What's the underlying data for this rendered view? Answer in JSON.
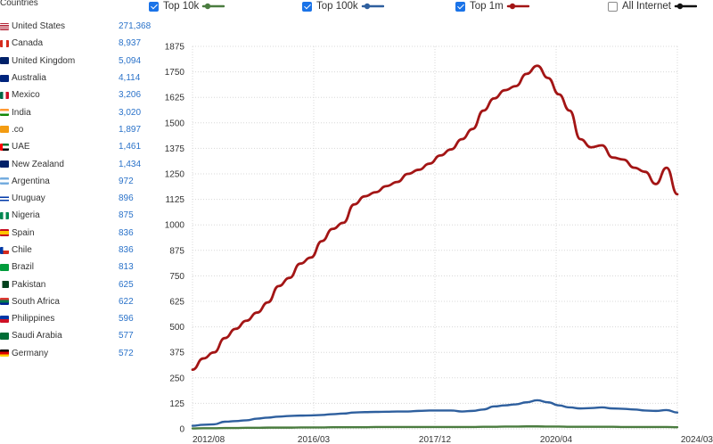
{
  "sidebar": {
    "header": "Countries",
    "countries": [
      {
        "name": "United States",
        "count": "271,368",
        "flag": "us"
      },
      {
        "name": "Canada",
        "count": "8,937",
        "flag": "ca"
      },
      {
        "name": "United Kingdom",
        "count": "5,094",
        "flag": "gb"
      },
      {
        "name": "Australia",
        "count": "4,114",
        "flag": "au"
      },
      {
        "name": "Mexico",
        "count": "3,206",
        "flag": "mx"
      },
      {
        "name": "India",
        "count": "3,020",
        "flag": "in"
      },
      {
        "name": ".co",
        "count": "1,897",
        "flag": "co"
      },
      {
        "name": "UAE",
        "count": "1,461",
        "flag": "ae"
      },
      {
        "name": "New Zealand",
        "count": "1,434",
        "flag": "nz"
      },
      {
        "name": "Argentina",
        "count": "972",
        "flag": "ar"
      },
      {
        "name": "Uruguay",
        "count": "896",
        "flag": "uy"
      },
      {
        "name": "Nigeria",
        "count": "875",
        "flag": "ng"
      },
      {
        "name": "Spain",
        "count": "836",
        "flag": "es"
      },
      {
        "name": "Chile",
        "count": "836",
        "flag": "cl"
      },
      {
        "name": "Brazil",
        "count": "813",
        "flag": "br"
      },
      {
        "name": "Pakistan",
        "count": "625",
        "flag": "pk"
      },
      {
        "name": "South Africa",
        "count": "622",
        "flag": "za"
      },
      {
        "name": "Philippines",
        "count": "596",
        "flag": "ph"
      },
      {
        "name": "Saudi Arabia",
        "count": "577",
        "flag": "sa"
      },
      {
        "name": "Germany",
        "count": "572",
        "flag": "de"
      }
    ]
  },
  "legend": [
    {
      "label": "Top 10k",
      "checked": true,
      "color": "#4a7c3f"
    },
    {
      "label": "Top 100k",
      "checked": true,
      "color": "#2e5f9e"
    },
    {
      "label": "Top 1m",
      "checked": true,
      "color": "#a31515"
    },
    {
      "label": "All Internet",
      "checked": false,
      "color": "#111111"
    }
  ],
  "chart_data": {
    "type": "line",
    "ylim": [
      0,
      1875
    ],
    "y_ticks": [
      "0",
      "125",
      "250",
      "375",
      "500",
      "625",
      "750",
      "875",
      "1000",
      "1125",
      "1250",
      "1375",
      "1500",
      "1625",
      "1750",
      "1875"
    ],
    "x_ticks": [
      "2012/08",
      "2016/03",
      "2017/12",
      "2020/04",
      "2024/03"
    ],
    "grid": true,
    "series": [
      {
        "name": "Top 1m",
        "color": "#a31515",
        "values": [
          290,
          345,
          375,
          445,
          490,
          530,
          570,
          620,
          700,
          740,
          810,
          840,
          920,
          980,
          1010,
          1100,
          1140,
          1160,
          1190,
          1210,
          1250,
          1270,
          1300,
          1340,
          1370,
          1420,
          1470,
          1560,
          1620,
          1660,
          1680,
          1740,
          1780,
          1720,
          1640,
          1560,
          1420,
          1380,
          1390,
          1330,
          1320,
          1280,
          1260,
          1200,
          1280,
          1150
        ]
      },
      {
        "name": "Top 100k",
        "color": "#2e5f9e",
        "values": [
          15,
          20,
          22,
          35,
          38,
          42,
          50,
          55,
          60,
          63,
          65,
          66,
          68,
          72,
          75,
          80,
          82,
          83,
          84,
          85,
          85,
          88,
          90,
          90,
          90,
          85,
          88,
          95,
          110,
          115,
          120,
          130,
          140,
          130,
          115,
          105,
          100,
          102,
          105,
          100,
          98,
          95,
          90,
          88,
          92,
          80
        ]
      },
      {
        "name": "Top 10k",
        "color": "#4a7c3f",
        "values": [
          2,
          3,
          3,
          4,
          4,
          5,
          5,
          6,
          6,
          6,
          7,
          7,
          7,
          8,
          8,
          8,
          8,
          9,
          9,
          9,
          9,
          9,
          9,
          9,
          9,
          9,
          9,
          10,
          10,
          11,
          11,
          12,
          12,
          11,
          11,
          10,
          10,
          10,
          10,
          10,
          9,
          9,
          9,
          9,
          9,
          8
        ]
      }
    ]
  }
}
